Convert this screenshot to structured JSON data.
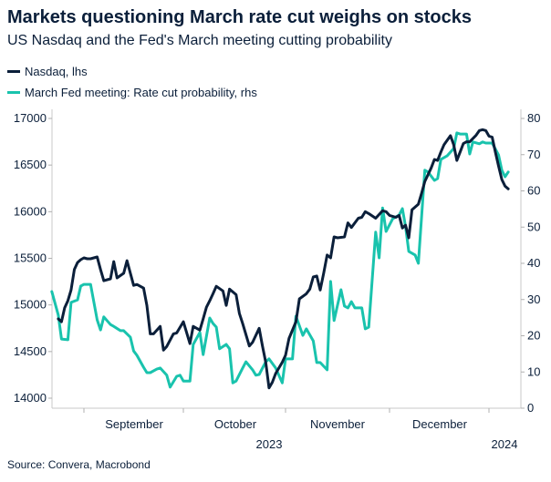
{
  "title": "Markets questioning March rate cut weighs on stocks",
  "subtitle": "US Nasdaq and the Fed's March meeting cutting probability",
  "source": "Source: Convera, Macrobond",
  "chart_data": {
    "type": "line",
    "title": "Markets questioning March rate cut weighs on stocks",
    "subtitle": "US Nasdaq and the Fed's March meeting cutting probability",
    "legend_placement": "top-left",
    "grid": false,
    "x_tick_labels": [
      "September",
      "October",
      "November",
      "December"
    ],
    "x_year_labels": [
      "2023",
      "2024"
    ],
    "y_left": {
      "ticks": [
        "17000",
        "16500",
        "16000",
        "15500",
        "15000",
        "14500",
        "14000"
      ],
      "range": [
        14000,
        17000
      ]
    },
    "y_right": {
      "ticks": [
        "80",
        "70",
        "60",
        "50",
        "40",
        "30",
        "20",
        "10",
        "0"
      ],
      "range": [
        0,
        80
      ]
    },
    "series": [
      {
        "name": "Nasdaq, lhs",
        "axis": "left",
        "color": "#0b1f3a",
        "points": [
          [
            "2023-08-24",
            14850
          ],
          [
            "2023-08-25",
            14820
          ],
          [
            "2023-08-26",
            14970
          ],
          [
            "2023-08-27",
            15045
          ],
          [
            "2023-08-28",
            15160
          ],
          [
            "2023-08-29",
            15380
          ],
          [
            "2023-08-30",
            15455
          ],
          [
            "2023-08-31",
            15485
          ],
          [
            "2023-09-01",
            15505
          ],
          [
            "2023-09-02",
            15495
          ],
          [
            "2023-09-03",
            15495
          ],
          [
            "2023-09-04",
            15505
          ],
          [
            "2023-09-05",
            15515
          ],
          [
            "2023-09-06",
            15380
          ],
          [
            "2023-09-07",
            15260
          ],
          [
            "2023-09-09",
            15280
          ],
          [
            "2023-09-10",
            15465
          ],
          [
            "2023-09-11",
            15290
          ],
          [
            "2023-09-13",
            15340
          ],
          [
            "2023-09-14",
            15475
          ],
          [
            "2023-09-16",
            15210
          ],
          [
            "2023-09-17",
            15220
          ],
          [
            "2023-09-19",
            15180
          ],
          [
            "2023-09-20",
            14995
          ],
          [
            "2023-09-21",
            14690
          ],
          [
            "2023-09-22",
            14690
          ],
          [
            "2023-09-24",
            14770
          ],
          [
            "2023-09-25",
            14515
          ],
          [
            "2023-09-26",
            14555
          ],
          [
            "2023-09-28",
            14690
          ],
          [
            "2023-09-29",
            14700
          ],
          [
            "2023-10-01",
            14820
          ],
          [
            "2023-10-03",
            14585
          ],
          [
            "2023-10-04",
            14770
          ],
          [
            "2023-10-06",
            14730
          ],
          [
            "2023-10-07",
            14850
          ],
          [
            "2023-10-08",
            14975
          ],
          [
            "2023-10-09",
            15045
          ],
          [
            "2023-10-10",
            15120
          ],
          [
            "2023-10-11",
            15200
          ],
          [
            "2023-10-13",
            15150
          ],
          [
            "2023-10-14",
            14995
          ],
          [
            "2023-10-15",
            15170
          ],
          [
            "2023-10-17",
            15110
          ],
          [
            "2023-10-18",
            14910
          ],
          [
            "2023-10-19",
            14800
          ],
          [
            "2023-10-21",
            14560
          ],
          [
            "2023-10-22",
            14600
          ],
          [
            "2023-10-24",
            14750
          ],
          [
            "2023-10-25",
            14560
          ],
          [
            "2023-10-26",
            14385
          ],
          [
            "2023-10-27",
            14110
          ],
          [
            "2023-10-28",
            14170
          ],
          [
            "2023-10-29",
            14265
          ],
          [
            "2023-10-31",
            14385
          ],
          [
            "2023-11-01",
            14460
          ],
          [
            "2023-11-02",
            14640
          ],
          [
            "2023-11-04",
            14820
          ],
          [
            "2023-11-05",
            15065
          ],
          [
            "2023-11-07",
            15120
          ],
          [
            "2023-11-08",
            15170
          ],
          [
            "2023-11-09",
            15300
          ],
          [
            "2023-11-10",
            15310
          ],
          [
            "2023-11-11",
            15160
          ],
          [
            "2023-11-12",
            15340
          ],
          [
            "2023-11-13",
            15535
          ],
          [
            "2023-11-14",
            15505
          ],
          [
            "2023-11-15",
            15730
          ],
          [
            "2023-11-16",
            15720
          ],
          [
            "2023-11-18",
            15730
          ],
          [
            "2023-11-19",
            15880
          ],
          [
            "2023-11-20",
            15830
          ],
          [
            "2023-11-22",
            15930
          ],
          [
            "2023-11-23",
            15940
          ],
          [
            "2023-11-24",
            16000
          ],
          [
            "2023-11-25",
            15980
          ],
          [
            "2023-11-27",
            15930
          ],
          [
            "2023-11-28",
            15970
          ],
          [
            "2023-11-29",
            16010
          ],
          [
            "2023-11-30",
            16000
          ],
          [
            "2023-12-01",
            15960
          ],
          [
            "2023-12-03",
            15940
          ],
          [
            "2023-12-04",
            15960
          ],
          [
            "2023-12-05",
            15825
          ],
          [
            "2023-12-06",
            15855
          ],
          [
            "2023-12-07",
            15720
          ],
          [
            "2023-12-08",
            16020
          ],
          [
            "2023-12-10",
            16080
          ],
          [
            "2023-12-11",
            16200
          ],
          [
            "2023-12-12",
            16325
          ],
          [
            "2023-12-14",
            16470
          ],
          [
            "2023-12-15",
            16560
          ],
          [
            "2023-12-16",
            16550
          ],
          [
            "2023-12-17",
            16640
          ],
          [
            "2023-12-18",
            16720
          ],
          [
            "2023-12-20",
            16815
          ],
          [
            "2023-12-21",
            16720
          ],
          [
            "2023-12-22",
            16550
          ],
          [
            "2023-12-23",
            16640
          ],
          [
            "2023-12-24",
            16730
          ],
          [
            "2023-12-25",
            16750
          ],
          [
            "2023-12-26",
            16750
          ],
          [
            "2023-12-28",
            16820
          ],
          [
            "2023-12-29",
            16870
          ],
          [
            "2023-12-30",
            16880
          ],
          [
            "2023-12-31",
            16870
          ],
          [
            "2024-01-01",
            16810
          ],
          [
            "2024-01-02",
            16800
          ],
          [
            "2024-01-03",
            16640
          ],
          [
            "2024-01-04",
            16490
          ],
          [
            "2024-01-05",
            16345
          ],
          [
            "2024-01-06",
            16275
          ],
          [
            "2024-01-07",
            16245
          ]
        ]
      },
      {
        "name": "March Fed meeting: Rate cut probability, rhs",
        "axis": "right",
        "color": "#19c3ad",
        "points": [
          [
            "2023-08-22",
            32.2
          ],
          [
            "2023-08-24",
            25.7
          ],
          [
            "2023-08-25",
            19.1
          ],
          [
            "2023-08-27",
            18.9
          ],
          [
            "2023-08-28",
            29.2
          ],
          [
            "2023-08-30",
            29.9
          ],
          [
            "2023-08-31",
            33.7
          ],
          [
            "2023-09-01",
            34.2
          ],
          [
            "2023-09-03",
            34.2
          ],
          [
            "2023-09-05",
            24.4
          ],
          [
            "2023-09-06",
            21.6
          ],
          [
            "2023-09-07",
            25.2
          ],
          [
            "2023-09-09",
            23.1
          ],
          [
            "2023-09-10",
            22.6
          ],
          [
            "2023-09-12",
            21.4
          ],
          [
            "2023-09-13",
            21.4
          ],
          [
            "2023-09-15",
            19.6
          ],
          [
            "2023-09-16",
            15.8
          ],
          [
            "2023-09-17",
            14.6
          ],
          [
            "2023-09-19",
            11.3
          ],
          [
            "2023-09-20",
            9.8
          ],
          [
            "2023-09-21",
            9.8
          ],
          [
            "2023-09-23",
            10.8
          ],
          [
            "2023-09-24",
            11.1
          ],
          [
            "2023-09-26",
            9.1
          ],
          [
            "2023-09-27",
            5.8
          ],
          [
            "2023-09-29",
            8.8
          ],
          [
            "2023-09-30",
            9.1
          ],
          [
            "2023-10-01",
            7.5
          ],
          [
            "2023-10-03",
            7.5
          ],
          [
            "2023-10-04",
            17.6
          ],
          [
            "2023-10-06",
            20.9
          ],
          [
            "2023-10-07",
            14.8
          ],
          [
            "2023-10-09",
            24.9
          ],
          [
            "2023-10-10",
            23.4
          ],
          [
            "2023-10-11",
            22.4
          ],
          [
            "2023-10-12",
            16.4
          ],
          [
            "2023-10-14",
            17.6
          ],
          [
            "2023-10-15",
            16.4
          ],
          [
            "2023-10-16",
            7.0
          ],
          [
            "2023-10-17",
            7.5
          ],
          [
            "2023-10-19",
            11.1
          ],
          [
            "2023-10-20",
            12.8
          ],
          [
            "2023-10-22",
            10.6
          ],
          [
            "2023-10-23",
            9.1
          ],
          [
            "2023-10-24",
            9.3
          ],
          [
            "2023-10-26",
            12.8
          ],
          [
            "2023-10-27",
            13.6
          ],
          [
            "2023-10-29",
            11.1
          ],
          [
            "2023-10-31",
            7.0
          ],
          [
            "2023-11-01",
            13.6
          ],
          [
            "2023-11-03",
            13.6
          ],
          [
            "2023-11-04",
            25.4
          ],
          [
            "2023-11-06",
            20.1
          ],
          [
            "2023-11-07",
            21.9
          ],
          [
            "2023-11-09",
            18.6
          ],
          [
            "2023-11-10",
            12.6
          ],
          [
            "2023-11-11",
            12.6
          ],
          [
            "2023-11-13",
            10.6
          ],
          [
            "2023-11-14",
            35.0
          ],
          [
            "2023-11-15",
            24.2
          ],
          [
            "2023-11-17",
            32.7
          ],
          [
            "2023-11-18",
            28.2
          ],
          [
            "2023-11-19",
            27.7
          ],
          [
            "2023-11-20",
            29.4
          ],
          [
            "2023-11-21",
            27.7
          ],
          [
            "2023-11-23",
            27.7
          ],
          [
            "2023-11-24",
            21.9
          ],
          [
            "2023-11-25",
            22.4
          ],
          [
            "2023-11-27",
            48.6
          ],
          [
            "2023-11-28",
            41.5
          ],
          [
            "2023-11-29",
            55.3
          ],
          [
            "2023-11-30",
            48.8
          ],
          [
            "2023-12-02",
            52.3
          ],
          [
            "2023-12-04",
            53.3
          ],
          [
            "2023-12-05",
            55.1
          ],
          [
            "2023-12-06",
            50.1
          ],
          [
            "2023-12-07",
            43.3
          ],
          [
            "2023-12-09",
            42.3
          ],
          [
            "2023-12-10",
            40.0
          ],
          [
            "2023-12-12",
            65.7
          ],
          [
            "2023-12-13",
            65.2
          ],
          [
            "2023-12-15",
            62.9
          ],
          [
            "2023-12-16",
            63.4
          ],
          [
            "2023-12-17",
            68.7
          ],
          [
            "2023-12-19",
            69.7
          ],
          [
            "2023-12-21",
            71.7
          ],
          [
            "2023-12-22",
            76.0
          ],
          [
            "2023-12-23",
            75.7
          ],
          [
            "2023-12-25",
            75.7
          ],
          [
            "2023-12-26",
            70.2
          ],
          [
            "2023-12-27",
            73.5
          ],
          [
            "2023-12-29",
            73.0
          ],
          [
            "2023-12-30",
            73.5
          ],
          [
            "2023-12-31",
            73.2
          ],
          [
            "2024-01-02",
            73.2
          ],
          [
            "2024-01-04",
            69.9
          ],
          [
            "2024-01-05",
            65.7
          ],
          [
            "2024-01-06",
            63.9
          ],
          [
            "2024-01-07",
            65.2
          ]
        ]
      }
    ]
  }
}
